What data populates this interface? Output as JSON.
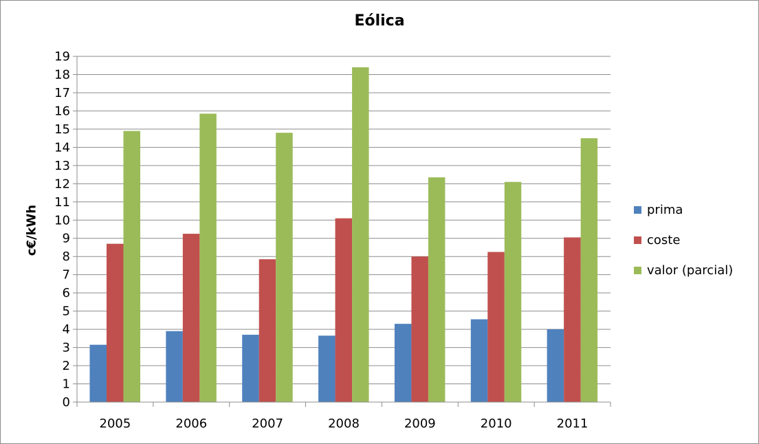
{
  "chart_data": {
    "type": "bar",
    "title": "Eólica",
    "xlabel": "",
    "ylabel": "c€/kWh",
    "ylim": [
      0,
      19
    ],
    "yticks": [
      "0",
      "1",
      "2",
      "3",
      "4",
      "5",
      "6",
      "7",
      "8",
      "9",
      "10",
      "11",
      "12",
      "13",
      "14",
      "15",
      "16",
      "17",
      "18",
      "19"
    ],
    "grid": true,
    "legend_position": "right",
    "categories": [
      "2005",
      "2006",
      "2007",
      "2008",
      "2009",
      "2010",
      "2011"
    ],
    "series": [
      {
        "name": "prima",
        "color": "#4f81bd",
        "values": [
          3.15,
          3.9,
          3.7,
          3.65,
          4.3,
          4.55,
          4.0
        ]
      },
      {
        "name": "coste",
        "color": "#c0504d",
        "values": [
          8.7,
          9.25,
          7.85,
          10.1,
          8.0,
          8.25,
          9.05
        ]
      },
      {
        "name": "valor (parcial)",
        "color": "#9bbb59",
        "values": [
          14.9,
          15.85,
          14.8,
          18.4,
          12.35,
          12.1,
          14.5
        ]
      }
    ]
  }
}
